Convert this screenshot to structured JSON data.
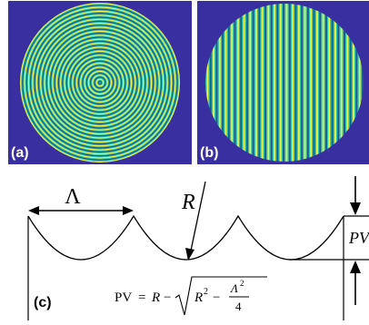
{
  "figure": {
    "panel_a": {
      "label": "(a)",
      "pattern": "concentric-rings",
      "ring_count": 20
    },
    "panel_b": {
      "label": "(b)",
      "pattern": "vertical-stripes",
      "stripe_count": 26
    },
    "panel_c": {
      "label": "(c)",
      "period_symbol": "Λ",
      "radius_symbol": "R",
      "pv_label": "PV",
      "formula": {
        "lhs": "PV",
        "equals": "=",
        "r": "R",
        "minus": "−",
        "r2": "R",
        "sq": "2",
        "minus2": "−",
        "num_base": "Λ",
        "num_exp": "2",
        "den": "4"
      }
    },
    "colors": {
      "background": "#3a2fa0",
      "ring_light": "#e8f545",
      "ring_mid": "#2ec2b0",
      "ring_dark": "#1c5a8c"
    }
  }
}
